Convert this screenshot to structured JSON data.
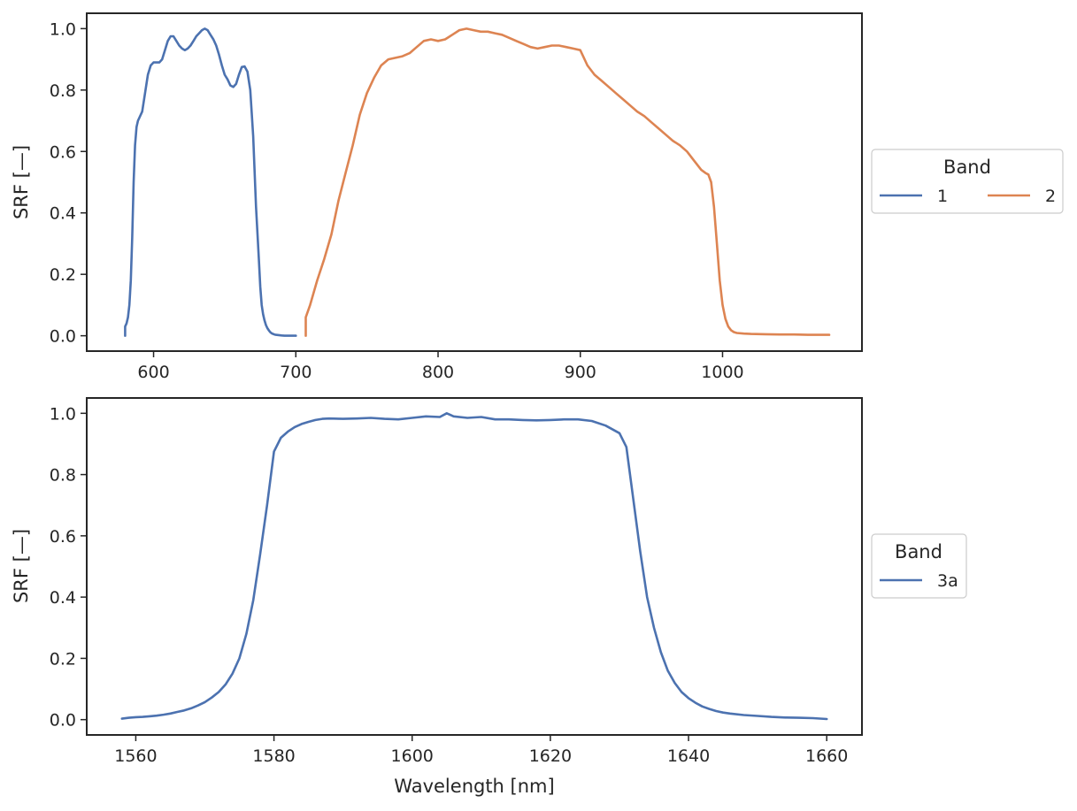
{
  "colors": {
    "band1": "#4c72b0",
    "band2": "#dd8452",
    "band3a": "#4c72b0",
    "axes": "#262626"
  },
  "chart_data": [
    {
      "type": "line",
      "title": "",
      "xlabel": "",
      "ylabel": "SRF [—]",
      "xlim": [
        553,
        1098
      ],
      "ylim": [
        -0.05,
        1.05
      ],
      "xticks": [
        600,
        700,
        800,
        900,
        1000
      ],
      "yticks": [
        0.0,
        0.2,
        0.4,
        0.6,
        0.8,
        1.0
      ],
      "grid": false,
      "legend": {
        "title": "Band",
        "placement": "outside-right",
        "columns": 2
      },
      "series": [
        {
          "name": "1",
          "color": "#4c72b0",
          "x": [
            580,
            580,
            581,
            582,
            583,
            584,
            585,
            586,
            587,
            588,
            589,
            590,
            592,
            594,
            596,
            598,
            600,
            602,
            604,
            606,
            608,
            610,
            612,
            614,
            616,
            618,
            620,
            622,
            624,
            626,
            628,
            630,
            632,
            634,
            636,
            638,
            640,
            642,
            644,
            646,
            648,
            650,
            652,
            654,
            656,
            658,
            660,
            662,
            664,
            666,
            668,
            670,
            672,
            674,
            675,
            676,
            677,
            678,
            679,
            680,
            681,
            682,
            683,
            684,
            685,
            686,
            688,
            690,
            692,
            694,
            696,
            698,
            700
          ],
          "y": [
            0.0,
            0.03,
            0.04,
            0.06,
            0.1,
            0.18,
            0.32,
            0.5,
            0.62,
            0.68,
            0.7,
            0.71,
            0.73,
            0.79,
            0.85,
            0.88,
            0.89,
            0.89,
            0.89,
            0.9,
            0.93,
            0.96,
            0.975,
            0.975,
            0.96,
            0.945,
            0.935,
            0.93,
            0.935,
            0.945,
            0.96,
            0.975,
            0.985,
            0.995,
            1.0,
            0.995,
            0.98,
            0.965,
            0.945,
            0.915,
            0.88,
            0.85,
            0.835,
            0.815,
            0.81,
            0.82,
            0.85,
            0.875,
            0.877,
            0.86,
            0.8,
            0.65,
            0.42,
            0.25,
            0.16,
            0.1,
            0.07,
            0.05,
            0.035,
            0.025,
            0.018,
            0.012,
            0.008,
            0.006,
            0.004,
            0.003,
            0.002,
            0.001,
            0.0,
            0.0,
            0.0,
            0.0,
            0.0
          ]
        },
        {
          "name": "2",
          "color": "#dd8452",
          "x": [
            707,
            707,
            710,
            715,
            720,
            725,
            730,
            735,
            740,
            745,
            750,
            755,
            760,
            765,
            770,
            775,
            780,
            785,
            790,
            795,
            800,
            805,
            810,
            815,
            820,
            825,
            830,
            835,
            840,
            845,
            850,
            855,
            860,
            865,
            870,
            875,
            880,
            885,
            890,
            895,
            900,
            905,
            910,
            915,
            920,
            925,
            930,
            935,
            940,
            945,
            950,
            955,
            960,
            965,
            970,
            975,
            980,
            985,
            988,
            990,
            992,
            994,
            996,
            998,
            1000,
            1002,
            1004,
            1006,
            1008,
            1010,
            1015,
            1020,
            1030,
            1040,
            1050,
            1060,
            1075
          ],
          "y": [
            0.0,
            0.06,
            0.1,
            0.18,
            0.25,
            0.33,
            0.44,
            0.53,
            0.62,
            0.72,
            0.79,
            0.84,
            0.88,
            0.9,
            0.905,
            0.91,
            0.92,
            0.94,
            0.96,
            0.965,
            0.96,
            0.965,
            0.98,
            0.995,
            1.0,
            0.995,
            0.99,
            0.99,
            0.985,
            0.98,
            0.97,
            0.96,
            0.95,
            0.94,
            0.935,
            0.94,
            0.945,
            0.945,
            0.94,
            0.935,
            0.93,
            0.88,
            0.85,
            0.83,
            0.81,
            0.79,
            0.77,
            0.75,
            0.73,
            0.715,
            0.695,
            0.675,
            0.655,
            0.635,
            0.62,
            0.6,
            0.57,
            0.54,
            0.53,
            0.525,
            0.5,
            0.42,
            0.3,
            0.18,
            0.1,
            0.055,
            0.03,
            0.018,
            0.012,
            0.009,
            0.007,
            0.006,
            0.005,
            0.004,
            0.004,
            0.003,
            0.003
          ]
        }
      ]
    },
    {
      "type": "line",
      "title": "",
      "xlabel": "Wavelength [nm]",
      "ylabel": "SRF [—]",
      "xlim": [
        1552.9,
        1665.1
      ],
      "ylim": [
        -0.05,
        1.05
      ],
      "xticks": [
        1560,
        1580,
        1600,
        1620,
        1640,
        1660
      ],
      "yticks": [
        0.0,
        0.2,
        0.4,
        0.6,
        0.8,
        1.0
      ],
      "grid": false,
      "legend": {
        "title": "Band",
        "placement": "outside-right",
        "columns": 1
      },
      "series": [
        {
          "name": "3a",
          "color": "#4c72b0",
          "x": [
            1558,
            1559,
            1560,
            1561,
            1562,
            1563,
            1564,
            1565,
            1566,
            1567,
            1568,
            1569,
            1570,
            1571,
            1572,
            1573,
            1574,
            1575,
            1576,
            1577,
            1578,
            1579,
            1580,
            1581,
            1582,
            1583,
            1584,
            1585,
            1586,
            1587,
            1588,
            1590,
            1592,
            1594,
            1596,
            1598,
            1600,
            1602,
            1604,
            1605,
            1606,
            1608,
            1610,
            1612,
            1614,
            1616,
            1618,
            1620,
            1622,
            1624,
            1626,
            1628,
            1630,
            1631,
            1632,
            1633,
            1634,
            1635,
            1636,
            1637,
            1638,
            1639,
            1640,
            1641,
            1642,
            1643,
            1644,
            1645,
            1646,
            1648,
            1650,
            1652,
            1654,
            1656,
            1658,
            1660
          ],
          "y": [
            0.003,
            0.006,
            0.008,
            0.009,
            0.011,
            0.013,
            0.016,
            0.02,
            0.025,
            0.03,
            0.037,
            0.046,
            0.057,
            0.072,
            0.09,
            0.115,
            0.15,
            0.2,
            0.28,
            0.39,
            0.54,
            0.7,
            0.875,
            0.92,
            0.94,
            0.955,
            0.965,
            0.972,
            0.978,
            0.982,
            0.983,
            0.982,
            0.983,
            0.985,
            0.982,
            0.98,
            0.985,
            0.99,
            0.988,
            1.0,
            0.99,
            0.985,
            0.988,
            0.98,
            0.98,
            0.978,
            0.977,
            0.978,
            0.98,
            0.98,
            0.975,
            0.96,
            0.935,
            0.89,
            0.72,
            0.55,
            0.4,
            0.3,
            0.22,
            0.16,
            0.12,
            0.09,
            0.07,
            0.055,
            0.043,
            0.035,
            0.028,
            0.023,
            0.02,
            0.015,
            0.012,
            0.009,
            0.007,
            0.006,
            0.005,
            0.002
          ]
        }
      ]
    }
  ]
}
